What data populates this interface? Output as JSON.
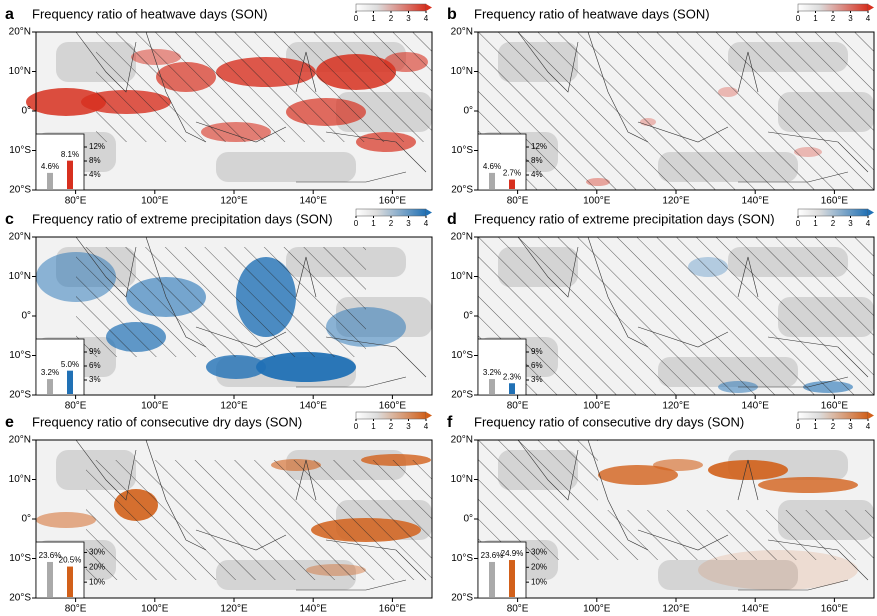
{
  "chart_data": [
    {
      "type": "map",
      "panel_label": "a",
      "title": "Frequency ratio of heatwave days (SON)",
      "color": "#d7301f",
      "colorbar": {
        "ticks": [
          0,
          1,
          2,
          3,
          4
        ]
      },
      "xlim": [
        70,
        170
      ],
      "ylim": [
        -20,
        20
      ],
      "xticks": [
        {
          "value": 80,
          "label": "80°E"
        },
        {
          "value": 100,
          "label": "100°E"
        },
        {
          "value": 120,
          "label": "120°E"
        },
        {
          "value": 140,
          "label": "140°E"
        },
        {
          "value": 160,
          "label": "160°E"
        }
      ],
      "yticks": [
        {
          "value": 20,
          "label": "20°N"
        },
        {
          "value": 10,
          "label": "10°N"
        },
        {
          "value": 0,
          "label": "0°"
        },
        {
          "value": -10,
          "label": "10°S"
        },
        {
          "value": -20,
          "label": "20°S"
        }
      ],
      "inset": {
        "type": "bar",
        "values": [
          4.6,
          8.1
        ],
        "value_labels": [
          "4.6%",
          "8.1%"
        ],
        "colors": [
          "#aaaaaa",
          "#d7301f"
        ],
        "ylim": [
          0,
          14
        ],
        "yticks": [
          {
            "value": 12,
            "label": "12%"
          },
          {
            "value": 8,
            "label": "8%"
          },
          {
            "value": 4,
            "label": "4%"
          }
        ]
      }
    },
    {
      "type": "map",
      "panel_label": "b",
      "title": "Frequency ratio of heatwave days (SON)",
      "color": "#d7301f",
      "colorbar": {
        "ticks": [
          0,
          1,
          2,
          3,
          4
        ]
      },
      "xlim": [
        70,
        170
      ],
      "ylim": [
        -20,
        20
      ],
      "xticks": [
        {
          "value": 80,
          "label": "80°E"
        },
        {
          "value": 100,
          "label": "100°E"
        },
        {
          "value": 120,
          "label": "120°E"
        },
        {
          "value": 140,
          "label": "140°E"
        },
        {
          "value": 160,
          "label": "160°E"
        }
      ],
      "yticks": [
        {
          "value": 20,
          "label": "20°N"
        },
        {
          "value": 10,
          "label": "10°N"
        },
        {
          "value": 0,
          "label": "0°"
        },
        {
          "value": -10,
          "label": "10°S"
        },
        {
          "value": -20,
          "label": "20°S"
        }
      ],
      "inset": {
        "type": "bar",
        "values": [
          4.6,
          2.7
        ],
        "value_labels": [
          "4.6%",
          "2.7%"
        ],
        "colors": [
          "#aaaaaa",
          "#d7301f"
        ],
        "ylim": [
          0,
          14
        ],
        "yticks": [
          {
            "value": 12,
            "label": "12%"
          },
          {
            "value": 8,
            "label": "8%"
          },
          {
            "value": 4,
            "label": "4%"
          }
        ]
      }
    },
    {
      "type": "map",
      "panel_label": "c",
      "title": "Frequency ratio of extreme precipitation days (SON)",
      "color": "#2171b5",
      "colorbar": {
        "ticks": [
          0,
          1,
          2,
          3,
          4
        ]
      },
      "xlim": [
        70,
        170
      ],
      "ylim": [
        -20,
        20
      ],
      "xticks": [
        {
          "value": 80,
          "label": "80°E"
        },
        {
          "value": 100,
          "label": "100°E"
        },
        {
          "value": 120,
          "label": "120°E"
        },
        {
          "value": 140,
          "label": "140°E"
        },
        {
          "value": 160,
          "label": "160°E"
        }
      ],
      "yticks": [
        {
          "value": 20,
          "label": "20°N"
        },
        {
          "value": 10,
          "label": "10°N"
        },
        {
          "value": 0,
          "label": "0°"
        },
        {
          "value": -10,
          "label": "10°S"
        },
        {
          "value": -20,
          "label": "20°S"
        }
      ],
      "inset": {
        "type": "bar",
        "values": [
          3.2,
          5.0
        ],
        "value_labels": [
          "3.2%",
          "5.0%"
        ],
        "colors": [
          "#aaaaaa",
          "#2171b5"
        ],
        "ylim": [
          0,
          10.5
        ],
        "yticks": [
          {
            "value": 9,
            "label": "9%"
          },
          {
            "value": 6,
            "label": "6%"
          },
          {
            "value": 3,
            "label": "3%"
          }
        ]
      }
    },
    {
      "type": "map",
      "panel_label": "d",
      "title": "Frequency ratio of extreme precipitation days (SON)",
      "color": "#2171b5",
      "colorbar": {
        "ticks": [
          0,
          1,
          2,
          3,
          4
        ]
      },
      "xlim": [
        70,
        170
      ],
      "ylim": [
        -20,
        20
      ],
      "xticks": [
        {
          "value": 80,
          "label": "80°E"
        },
        {
          "value": 100,
          "label": "100°E"
        },
        {
          "value": 120,
          "label": "120°E"
        },
        {
          "value": 140,
          "label": "140°E"
        },
        {
          "value": 160,
          "label": "160°E"
        }
      ],
      "yticks": [
        {
          "value": 20,
          "label": "20°N"
        },
        {
          "value": 10,
          "label": "10°N"
        },
        {
          "value": 0,
          "label": "0°"
        },
        {
          "value": -10,
          "label": "10°S"
        },
        {
          "value": -20,
          "label": "20°S"
        }
      ],
      "inset": {
        "type": "bar",
        "values": [
          3.2,
          2.3
        ],
        "value_labels": [
          "3.2%",
          "2.3%"
        ],
        "colors": [
          "#aaaaaa",
          "#2171b5"
        ],
        "ylim": [
          0,
          10.5
        ],
        "yticks": [
          {
            "value": 9,
            "label": "9%"
          },
          {
            "value": 6,
            "label": "6%"
          },
          {
            "value": 3,
            "label": "3%"
          }
        ]
      }
    },
    {
      "type": "map",
      "panel_label": "e",
      "title": "Frequency ratio of consecutive dry days (SON)",
      "color": "#d2601a",
      "colorbar": {
        "ticks": [
          0,
          1,
          2,
          3,
          4
        ]
      },
      "xlim": [
        70,
        170
      ],
      "ylim": [
        -20,
        20
      ],
      "xticks": [
        {
          "value": 80,
          "label": "80°E"
        },
        {
          "value": 100,
          "label": "100°E"
        },
        {
          "value": 120,
          "label": "120°E"
        },
        {
          "value": 140,
          "label": "140°E"
        },
        {
          "value": 160,
          "label": "160°E"
        }
      ],
      "yticks": [
        {
          "value": 20,
          "label": "20°N"
        },
        {
          "value": 10,
          "label": "10°N"
        },
        {
          "value": 0,
          "label": "0°"
        },
        {
          "value": -10,
          "label": "10°S"
        },
        {
          "value": -20,
          "label": "20°S"
        }
      ],
      "inset": {
        "type": "bar",
        "values": [
          23.6,
          20.5
        ],
        "value_labels": [
          "23.6%",
          "20.5%"
        ],
        "colors": [
          "#aaaaaa",
          "#d2601a"
        ],
        "ylim": [
          0,
          33
        ],
        "yticks": [
          {
            "value": 30,
            "label": "30%"
          },
          {
            "value": 20,
            "label": "20%"
          },
          {
            "value": 10,
            "label": "10%"
          }
        ]
      }
    },
    {
      "type": "map",
      "panel_label": "f",
      "title": "Frequency ratio of consecutive dry days (SON)",
      "color": "#d2601a",
      "colorbar": {
        "ticks": [
          0,
          1,
          2,
          3,
          4
        ]
      },
      "xlim": [
        70,
        170
      ],
      "ylim": [
        -20,
        20
      ],
      "xticks": [
        {
          "value": 80,
          "label": "80°E"
        },
        {
          "value": 100,
          "label": "100°E"
        },
        {
          "value": 120,
          "label": "120°E"
        },
        {
          "value": 140,
          "label": "140°E"
        },
        {
          "value": 160,
          "label": "160°E"
        }
      ],
      "yticks": [
        {
          "value": 20,
          "label": "20°N"
        },
        {
          "value": 10,
          "label": "10°N"
        },
        {
          "value": 0,
          "label": "0°"
        },
        {
          "value": -10,
          "label": "10°S"
        },
        {
          "value": -20,
          "label": "20°S"
        }
      ],
      "inset": {
        "type": "bar",
        "values": [
          23.6,
          24.9
        ],
        "value_labels": [
          "23.6%",
          "24.9%"
        ],
        "colors": [
          "#aaaaaa",
          "#d2601a"
        ],
        "ylim": [
          0,
          33
        ],
        "yticks": [
          {
            "value": 30,
            "label": "30%"
          },
          {
            "value": 20,
            "label": "20%"
          },
          {
            "value": 10,
            "label": "10%"
          }
        ]
      }
    }
  ]
}
